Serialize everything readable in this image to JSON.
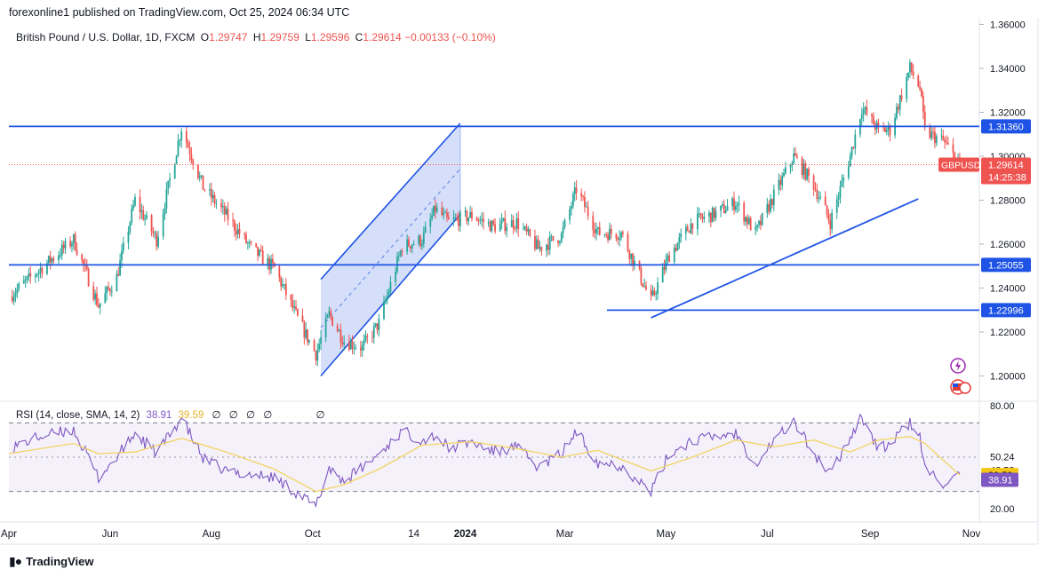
{
  "publish_note": "forexonline1 published on TradingView.com, Oct 25, 2024 06:34 UTC",
  "header": {
    "symbol": "British Pound / U.S. Dollar, 1D, FXCM",
    "open_label": "O",
    "open": "1.29747",
    "high_label": "H",
    "high": "1.29759",
    "low_label": "L",
    "low": "1.29596",
    "close_label": "C",
    "close": "1.29614",
    "change": "−0.00133 (−0.10%)"
  },
  "rsi_legend": {
    "label": "RSI (14, close, SMA, 14, 2)",
    "rsi_value": "38.91",
    "sma_value": "39.59",
    "extra_glyphs": [
      "∅",
      "∅",
      "∅",
      "∅",
      "∅"
    ]
  },
  "brand": "TradingView",
  "colors": {
    "up": "#26a69a",
    "down": "#ef5350",
    "level_line": "#1e53e5",
    "channel_fill": "#c7d4f8",
    "rsi_line": "#7e57c2",
    "rsi_sma": "#f2d462",
    "current_price_bg": "#ef5350",
    "level_label_bg": "#1e53e5"
  },
  "chart_data": [
    {
      "type": "candlestick",
      "symbol": "GBPUSD",
      "timeframe": "1D",
      "y_axis_ticks": [
        "1.36000",
        "1.34000",
        "1.32000",
        "1.30000",
        "1.28000",
        "1.26000",
        "1.24000",
        "1.22000",
        "1.20000"
      ],
      "ylim": [
        1.194,
        1.366
      ],
      "x_axis_ticks": [
        "Apr",
        "Jun",
        "Aug",
        "Oct",
        "14",
        "2024",
        "Mar",
        "May",
        "Jul",
        "Sep",
        "Nov"
      ],
      "horizontal_levels": [
        {
          "label": "1.31360",
          "value": 1.3136,
          "from": "Apr 2023",
          "to": "Nov 2024"
        },
        {
          "label": "1.25055",
          "value": 1.25055,
          "from": "Apr 2023",
          "to": "Nov 2024"
        },
        {
          "label": "1.22996",
          "value": 1.22996,
          "from": "Apr 2024",
          "to": "Nov 2024"
        }
      ],
      "current_price": {
        "symbol_label": "GBPUSD",
        "price": "1.29614",
        "countdown": "14:25:38",
        "value": 1.29614
      },
      "channel": {
        "lower_line": [
          [
            "2023-10-06",
            1.2
          ],
          [
            "2023-12-29",
            1.2735
          ]
        ],
        "upper_line": [
          [
            "2023-10-06",
            1.244
          ],
          [
            "2023-12-29",
            1.315
          ]
        ]
      },
      "trendline": [
        [
          "2024-04-22",
          1.2265
        ],
        [
          "2024-09-30",
          1.2806
        ]
      ],
      "price_path": [
        [
          "2023-04-01",
          1.236
        ],
        [
          "2023-05-10",
          1.262
        ],
        [
          "2023-05-25",
          1.232
        ],
        [
          "2023-06-05",
          1.245
        ],
        [
          "2023-06-16",
          1.28
        ],
        [
          "2023-06-29",
          1.262
        ],
        [
          "2023-07-14",
          1.313
        ],
        [
          "2023-07-27",
          1.286
        ],
        [
          "2023-08-10",
          1.273
        ],
        [
          "2023-08-25",
          1.258
        ],
        [
          "2023-09-08",
          1.249
        ],
        [
          "2023-09-22",
          1.226
        ],
        [
          "2023-10-03",
          1.21
        ],
        [
          "2023-10-11",
          1.228
        ],
        [
          "2023-10-20",
          1.216
        ],
        [
          "2023-10-31",
          1.213
        ],
        [
          "2023-11-10",
          1.224
        ],
        [
          "2023-11-24",
          1.259
        ],
        [
          "2023-12-06",
          1.262
        ],
        [
          "2023-12-14",
          1.276
        ],
        [
          "2023-12-22",
          1.27
        ],
        [
          "2024-01-05",
          1.273
        ],
        [
          "2024-01-18",
          1.268
        ],
        [
          "2024-02-01",
          1.27
        ],
        [
          "2024-02-14",
          1.258
        ],
        [
          "2024-02-28",
          1.264
        ],
        [
          "2024-03-08",
          1.285
        ],
        [
          "2024-03-21",
          1.265
        ],
        [
          "2024-04-04",
          1.265
        ],
        [
          "2024-04-22",
          1.234
        ],
        [
          "2024-05-03",
          1.255
        ],
        [
          "2024-05-17",
          1.27
        ],
        [
          "2024-05-31",
          1.274
        ],
        [
          "2024-06-12",
          1.279
        ],
        [
          "2024-06-24",
          1.265
        ],
        [
          "2024-07-05",
          1.282
        ],
        [
          "2024-07-17",
          1.3
        ],
        [
          "2024-07-29",
          1.287
        ],
        [
          "2024-08-08",
          1.27
        ],
        [
          "2024-08-20",
          1.3
        ],
        [
          "2024-08-27",
          1.322
        ],
        [
          "2024-09-06",
          1.312
        ],
        [
          "2024-09-13",
          1.312
        ],
        [
          "2024-09-25",
          1.34
        ],
        [
          "2024-10-01",
          1.331
        ],
        [
          "2024-10-04",
          1.311
        ],
        [
          "2024-10-15",
          1.307
        ],
        [
          "2024-10-25",
          1.296
        ]
      ]
    },
    {
      "type": "line",
      "title": "RSI (14, close, SMA, 14, 2)",
      "y_axis_ticks": [
        "80.00",
        "50.24",
        "42.58",
        "20.00"
      ],
      "band": {
        "upper": 70,
        "middle": 50,
        "lower": 30
      },
      "last_rsi": 38.91,
      "last_sma": 39.59,
      "rsi_path": [
        [
          "2023-04-01",
          55
        ],
        [
          "2023-04-20",
          62
        ],
        [
          "2023-05-10",
          66
        ],
        [
          "2023-05-25",
          38
        ],
        [
          "2023-06-05",
          50
        ],
        [
          "2023-06-16",
          64
        ],
        [
          "2023-06-29",
          52
        ],
        [
          "2023-07-14",
          73
        ],
        [
          "2023-07-27",
          49
        ],
        [
          "2023-08-10",
          42
        ],
        [
          "2023-08-25",
          40
        ],
        [
          "2023-09-08",
          38
        ],
        [
          "2023-09-22",
          29
        ],
        [
          "2023-10-03",
          21
        ],
        [
          "2023-10-11",
          44
        ],
        [
          "2023-10-20",
          36
        ],
        [
          "2023-10-31",
          44
        ],
        [
          "2023-11-10",
          52
        ],
        [
          "2023-11-24",
          65
        ],
        [
          "2023-12-06",
          60
        ],
        [
          "2023-12-14",
          63
        ],
        [
          "2023-12-22",
          55
        ],
        [
          "2024-01-05",
          59
        ],
        [
          "2024-01-18",
          53
        ],
        [
          "2024-02-01",
          56
        ],
        [
          "2024-02-14",
          44
        ],
        [
          "2024-02-28",
          52
        ],
        [
          "2024-03-08",
          65
        ],
        [
          "2024-03-21",
          47
        ],
        [
          "2024-04-04",
          45
        ],
        [
          "2024-04-22",
          30
        ],
        [
          "2024-05-03",
          52
        ],
        [
          "2024-05-17",
          60
        ],
        [
          "2024-05-31",
          62
        ],
        [
          "2024-06-12",
          64
        ],
        [
          "2024-06-24",
          46
        ],
        [
          "2024-07-05",
          60
        ],
        [
          "2024-07-17",
          71
        ],
        [
          "2024-07-29",
          52
        ],
        [
          "2024-08-08",
          40
        ],
        [
          "2024-08-20",
          62
        ],
        [
          "2024-08-27",
          74
        ],
        [
          "2024-09-06",
          54
        ],
        [
          "2024-09-13",
          58
        ],
        [
          "2024-09-25",
          70
        ],
        [
          "2024-10-01",
          61
        ],
        [
          "2024-10-04",
          43
        ],
        [
          "2024-10-15",
          35
        ],
        [
          "2024-10-25",
          38.91
        ]
      ],
      "sma_path": [
        [
          "2023-04-01",
          52
        ],
        [
          "2023-05-10",
          58
        ],
        [
          "2023-05-25",
          52
        ],
        [
          "2023-06-16",
          53
        ],
        [
          "2023-07-14",
          61
        ],
        [
          "2023-08-10",
          53
        ],
        [
          "2023-09-08",
          43
        ],
        [
          "2023-10-03",
          30
        ],
        [
          "2023-10-20",
          34
        ],
        [
          "2023-11-10",
          43
        ],
        [
          "2023-12-06",
          57
        ],
        [
          "2024-01-05",
          59
        ],
        [
          "2024-02-01",
          55
        ],
        [
          "2024-02-28",
          50
        ],
        [
          "2024-03-21",
          54
        ],
        [
          "2024-04-22",
          42
        ],
        [
          "2024-05-17",
          50
        ],
        [
          "2024-06-12",
          60
        ],
        [
          "2024-07-05",
          56
        ],
        [
          "2024-07-29",
          60
        ],
        [
          "2024-08-20",
          53
        ],
        [
          "2024-09-06",
          60
        ],
        [
          "2024-09-25",
          62
        ],
        [
          "2024-10-04",
          58
        ],
        [
          "2024-10-25",
          39.59
        ]
      ]
    }
  ]
}
